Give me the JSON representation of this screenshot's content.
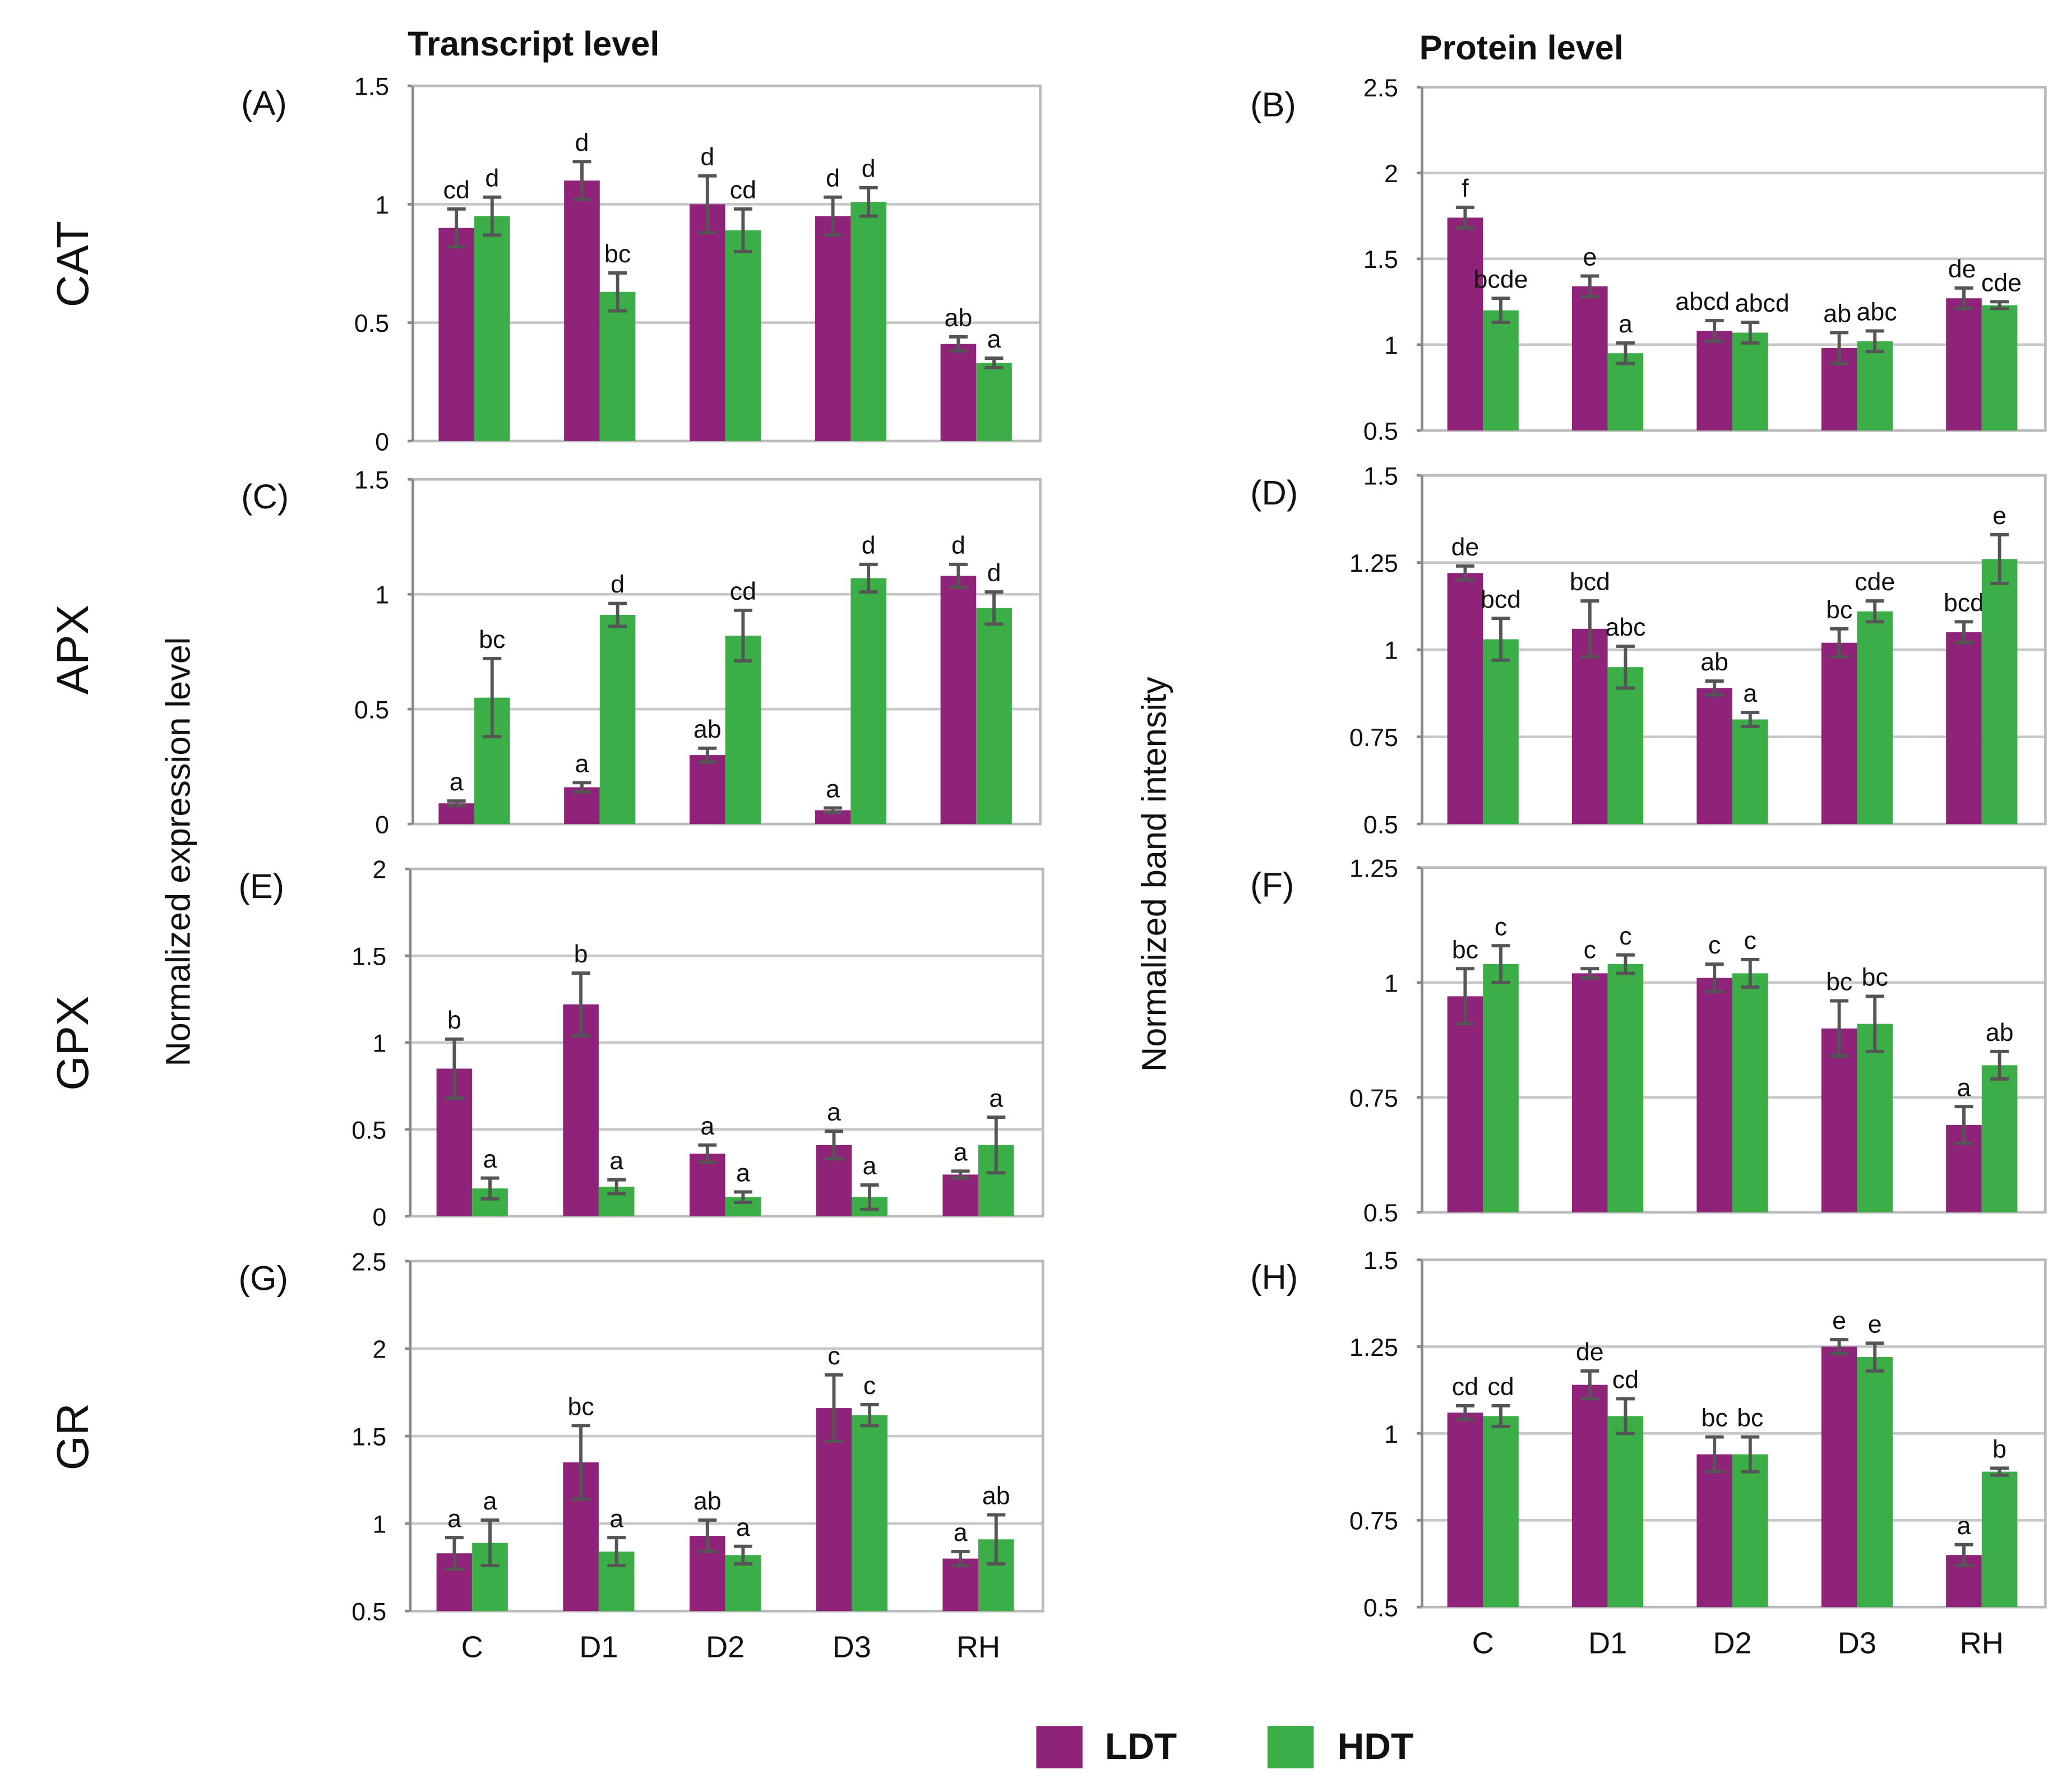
{
  "titles": {
    "left": "Transcript level",
    "right": "Protein level"
  },
  "ylabels": {
    "left": "Normalized expression level",
    "right": "Normalized band intensity"
  },
  "row_labels": [
    "CAT",
    "APX",
    "GPX",
    "GR"
  ],
  "legend": [
    {
      "name": "LDT",
      "color": "#8E2379"
    },
    {
      "name": "HDT",
      "color": "#3BAE48"
    }
  ],
  "colors": {
    "LDT": "#8E2379",
    "HDT": "#3BAE48",
    "error": "#555555",
    "grid": "#c8c8c8"
  },
  "chart_data": [
    {
      "type": "bar",
      "panel": "(A)",
      "row": "CAT",
      "level": "Transcript level",
      "categories": [
        "C",
        "D1",
        "D2",
        "D3",
        "RH"
      ],
      "ylim": [
        0,
        1.5
      ],
      "ticks": [
        "0",
        "0.5",
        "1",
        "1.5"
      ],
      "series": [
        {
          "name": "LDT",
          "values": [
            0.9,
            1.1,
            1.0,
            0.95,
            0.41
          ],
          "errors": [
            0.08,
            0.08,
            0.12,
            0.08,
            0.03
          ],
          "letters": [
            "cd",
            "d",
            "d",
            "d",
            "ab"
          ]
        },
        {
          "name": "HDT",
          "values": [
            0.95,
            0.63,
            0.89,
            1.01,
            0.33
          ],
          "errors": [
            0.08,
            0.08,
            0.09,
            0.06,
            0.02
          ],
          "letters": [
            "d",
            "bc",
            "cd",
            "d",
            "a"
          ]
        }
      ]
    },
    {
      "type": "bar",
      "panel": "(B)",
      "row": "CAT",
      "level": "Protein level",
      "categories": [
        "C",
        "D1",
        "D2",
        "D3",
        "RH"
      ],
      "ylim": [
        0.5,
        2.5
      ],
      "ticks": [
        "0.5",
        "1",
        "1.5",
        "2",
        "2.5"
      ],
      "series": [
        {
          "name": "LDT",
          "values": [
            1.74,
            1.34,
            1.08,
            0.98,
            1.27
          ],
          "errors": [
            0.06,
            0.06,
            0.06,
            0.09,
            0.06
          ],
          "letters": [
            "f",
            "e",
            "abcd",
            "ab",
            "de"
          ]
        },
        {
          "name": "HDT",
          "values": [
            1.2,
            0.95,
            1.07,
            1.02,
            1.23
          ],
          "errors": [
            0.07,
            0.06,
            0.06,
            0.06,
            0.02
          ],
          "letters": [
            "bcde",
            "a",
            "abcd",
            "abc",
            "cde"
          ]
        }
      ]
    },
    {
      "type": "bar",
      "panel": "(C)",
      "row": "APX",
      "level": "Transcript level",
      "categories": [
        "C",
        "D1",
        "D2",
        "D3",
        "RH"
      ],
      "ylim": [
        0,
        1.5
      ],
      "ticks": [
        "0",
        "0.5",
        "1",
        "1.5"
      ],
      "series": [
        {
          "name": "LDT",
          "values": [
            0.09,
            0.16,
            0.3,
            0.06,
            1.08
          ],
          "errors": [
            0.01,
            0.02,
            0.03,
            0.01,
            0.05
          ],
          "letters": [
            "a",
            "a",
            "ab",
            "a",
            "d"
          ]
        },
        {
          "name": "HDT",
          "values": [
            0.55,
            0.91,
            0.82,
            1.07,
            0.94
          ],
          "errors": [
            0.17,
            0.05,
            0.11,
            0.06,
            0.07
          ],
          "letters": [
            "bc",
            "d",
            "cd",
            "d",
            "d"
          ]
        }
      ]
    },
    {
      "type": "bar",
      "panel": "(D)",
      "row": "APX",
      "level": "Protein level",
      "categories": [
        "C",
        "D1",
        "D2",
        "D3",
        "RH"
      ],
      "ylim": [
        0.5,
        1.5
      ],
      "ticks": [
        "0.5",
        "0.75",
        "1",
        "1.25",
        "1.5"
      ],
      "series": [
        {
          "name": "LDT",
          "values": [
            1.22,
            1.06,
            0.89,
            1.02,
            1.05
          ],
          "errors": [
            0.02,
            0.08,
            0.02,
            0.04,
            0.03
          ],
          "letters": [
            "de",
            "bcd",
            "ab",
            "bc",
            "bcd"
          ]
        },
        {
          "name": "HDT",
          "values": [
            1.03,
            0.95,
            0.8,
            1.11,
            1.26
          ],
          "errors": [
            0.06,
            0.06,
            0.02,
            0.03,
            0.07
          ],
          "letters": [
            "bcd",
            "abc",
            "a",
            "cde",
            "e"
          ]
        }
      ]
    },
    {
      "type": "bar",
      "panel": "(E)",
      "row": "GPX",
      "level": "Transcript level",
      "categories": [
        "C",
        "D1",
        "D2",
        "D3",
        "RH"
      ],
      "ylim": [
        0,
        2
      ],
      "ticks": [
        "0",
        "0.5",
        "1",
        "1.5",
        "2"
      ],
      "series": [
        {
          "name": "LDT",
          "values": [
            0.85,
            1.22,
            0.36,
            0.41,
            0.24
          ],
          "errors": [
            0.17,
            0.18,
            0.05,
            0.08,
            0.02
          ],
          "letters": [
            "b",
            "b",
            "a",
            "a",
            "a"
          ]
        },
        {
          "name": "HDT",
          "values": [
            0.16,
            0.17,
            0.11,
            0.11,
            0.41
          ],
          "errors": [
            0.06,
            0.04,
            0.03,
            0.07,
            0.16
          ],
          "letters": [
            "a",
            "a",
            "a",
            "a",
            "a"
          ]
        }
      ]
    },
    {
      "type": "bar",
      "panel": "(F)",
      "row": "GPX",
      "level": "Protein level",
      "categories": [
        "C",
        "D1",
        "D2",
        "D3",
        "RH"
      ],
      "ylim": [
        0.5,
        1.25
      ],
      "ticks": [
        "0.5",
        "0.75",
        "1",
        "1.25"
      ],
      "series": [
        {
          "name": "LDT",
          "values": [
            0.97,
            1.02,
            1.01,
            0.9,
            0.69
          ],
          "errors": [
            0.06,
            0.01,
            0.03,
            0.06,
            0.04
          ],
          "letters": [
            "bc",
            "c",
            "c",
            "bc",
            "a"
          ]
        },
        {
          "name": "HDT",
          "values": [
            1.04,
            1.04,
            1.02,
            0.91,
            0.82
          ],
          "errors": [
            0.04,
            0.02,
            0.03,
            0.06,
            0.03
          ],
          "letters": [
            "c",
            "c",
            "c",
            "bc",
            "ab"
          ]
        }
      ]
    },
    {
      "type": "bar",
      "panel": "(G)",
      "row": "GR",
      "level": "Transcript level",
      "categories": [
        "C",
        "D1",
        "D2",
        "D3",
        "RH"
      ],
      "ylim": [
        0.5,
        2.5
      ],
      "ticks": [
        "0.5",
        "1",
        "1.5",
        "2",
        "2.5"
      ],
      "series": [
        {
          "name": "LDT",
          "values": [
            0.83,
            1.35,
            0.93,
            1.66,
            0.8
          ],
          "errors": [
            0.09,
            0.21,
            0.09,
            0.19,
            0.04
          ],
          "letters": [
            "a",
            "bc",
            "ab",
            "c",
            "a"
          ]
        },
        {
          "name": "HDT",
          "values": [
            0.89,
            0.84,
            0.82,
            1.62,
            0.91
          ],
          "errors": [
            0.13,
            0.08,
            0.05,
            0.06,
            0.14
          ],
          "letters": [
            "a",
            "a",
            "a",
            "c",
            "ab"
          ]
        }
      ]
    },
    {
      "type": "bar",
      "panel": "(H)",
      "row": "GR",
      "level": "Protein level",
      "categories": [
        "C",
        "D1",
        "D2",
        "D3",
        "RH"
      ],
      "ylim": [
        0.5,
        1.5
      ],
      "ticks": [
        "0.5",
        "0.75",
        "1",
        "1.25",
        "1.5"
      ],
      "series": [
        {
          "name": "LDT",
          "values": [
            1.06,
            1.14,
            0.94,
            1.25,
            0.65
          ],
          "errors": [
            0.02,
            0.04,
            0.05,
            0.02,
            0.03
          ],
          "letters": [
            "cd",
            "de",
            "bc",
            "e",
            "a"
          ]
        },
        {
          "name": "HDT",
          "values": [
            1.05,
            1.05,
            0.94,
            1.22,
            0.89
          ],
          "errors": [
            0.03,
            0.05,
            0.05,
            0.04,
            0.01
          ],
          "letters": [
            "cd",
            "cd",
            "bc",
            "e",
            "b"
          ]
        }
      ]
    }
  ]
}
